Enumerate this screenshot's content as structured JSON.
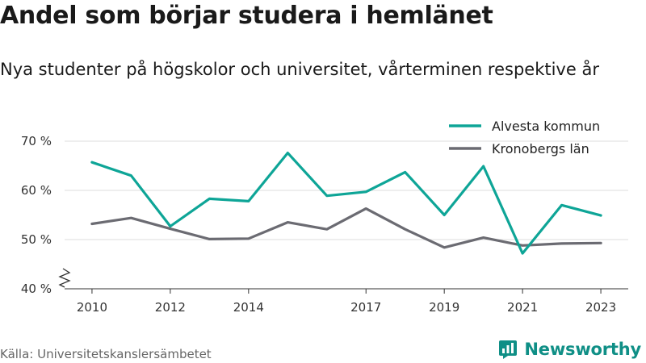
{
  "header": {
    "title": "Andel som börjar studera i hemlänet",
    "subtitle": "Nya studenter på högskolor och universitet, vårterminen respektive år"
  },
  "footer": {
    "source": "Källa: Universitetskanslersämbetet",
    "brand": "Newsworthy",
    "brand_icon": "newsworthy-logo-icon"
  },
  "colors": {
    "alvesta": "#0ea597",
    "kronoberg": "#6b6b72",
    "grid": "#dddddd",
    "axis": "#333333",
    "brand": "#0f8f86"
  },
  "chart_data": {
    "type": "line",
    "x": [
      2010,
      2011,
      2012,
      2013,
      2014,
      2015,
      2016,
      2017,
      2018,
      2019,
      2020,
      2021,
      2022,
      2023
    ],
    "x_ticks": [
      2010,
      2012,
      2014,
      2017,
      2019,
      2021,
      2023
    ],
    "y_ticks": [
      40,
      50,
      60,
      70
    ],
    "y_tick_labels": [
      "40 %",
      "50 %",
      "60 %",
      "70 %"
    ],
    "ylim": [
      40,
      70
    ],
    "grid": true,
    "axis_break": true,
    "legend_position": "top-right",
    "series": [
      {
        "name": "Alvesta kommun",
        "color": "#0ea597",
        "values": [
          65.7,
          63.0,
          52.7,
          58.3,
          57.8,
          67.6,
          58.9,
          59.7,
          63.7,
          55.0,
          64.9,
          47.2,
          57.0,
          54.9
        ]
      },
      {
        "name": "Kronobergs län",
        "color": "#6b6b72",
        "values": [
          53.2,
          54.4,
          52.2,
          50.1,
          50.2,
          53.5,
          52.1,
          56.3,
          52.1,
          48.4,
          50.4,
          48.8,
          49.2,
          49.3
        ]
      }
    ]
  }
}
